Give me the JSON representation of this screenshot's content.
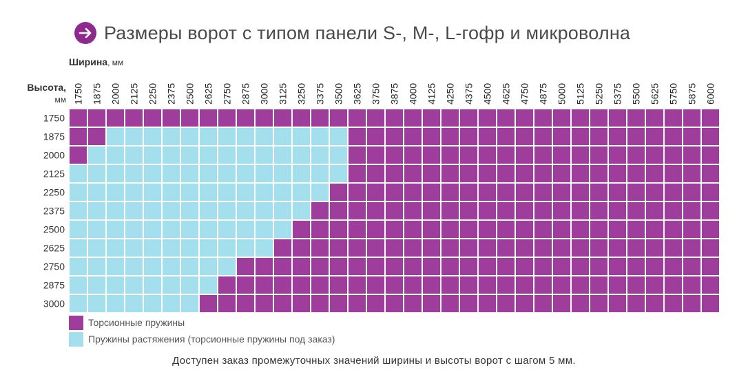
{
  "title": "Размеры ворот с  типом  панели S-, M-, L-гофр и микроволна",
  "icon": "arrow-right-circle-icon",
  "colors": {
    "purple": "#9e3d9b",
    "cyan": "#a3dfec",
    "grid": "#ffffff",
    "icon": "#8e2a8f"
  },
  "chart_data": {
    "type": "heatmap",
    "xlabel": "Ширина",
    "xunit": ", мм",
    "ylabel": "Высота,",
    "yunit": "мм",
    "x": [
      "1750",
      "1875",
      "2000",
      "2125",
      "2250",
      "2375",
      "2500",
      "2625",
      "2750",
      "2875",
      "3000",
      "3125",
      "3250",
      "3375",
      "3500",
      "3625",
      "3750",
      "3875",
      "4000",
      "4125",
      "4250",
      "4375",
      "4500",
      "4625",
      "4750",
      "4875",
      "5000",
      "5125",
      "5250",
      "5375",
      "5500",
      "5625",
      "5750",
      "5875",
      "6000"
    ],
    "y": [
      "1750",
      "1875",
      "2000",
      "2125",
      "2250",
      "2375",
      "2500",
      "2625",
      "2750",
      "2875",
      "3000"
    ],
    "extension_spring_max_width_by_height": {
      "1750": null,
      "1875": "3500",
      "2000": "3500",
      "2125": "3500",
      "2250": "3375",
      "2375": "3250",
      "2500": "3125",
      "2625": "3000",
      "2750": "2750",
      "2875": "2625",
      "3000": "2500"
    },
    "extension_spring_min_width_by_height": {
      "1750": null,
      "1875": "2000",
      "2000": "1875",
      "2125": "1750",
      "2250": "1750",
      "2375": "1750",
      "2500": "1750",
      "2625": "1750",
      "2750": "1750",
      "2875": "1750",
      "3000": "1750"
    },
    "legend": [
      {
        "key": "torsion",
        "label": "Торсионные пружины"
      },
      {
        "key": "extension",
        "label": "Пружины растяжения (торсионные пружины под заказ)"
      }
    ]
  },
  "footnote": "Доступен заказ промежуточных значений ширины и высоты ворот с шагом 5 мм."
}
